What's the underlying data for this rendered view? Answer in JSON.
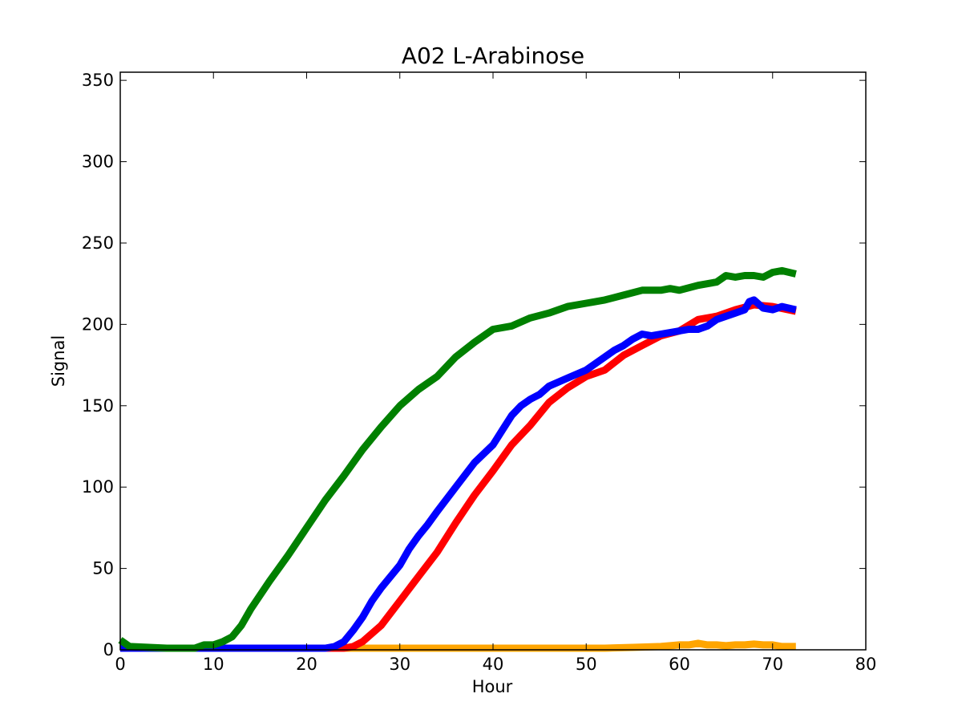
{
  "chart_data": {
    "type": "line",
    "title": "A02 L-Arabinose",
    "xlabel": "Hour",
    "ylabel": "Signal",
    "xlim": [
      0,
      80
    ],
    "ylim": [
      0,
      355
    ],
    "xticks": [
      0,
      10,
      20,
      30,
      40,
      50,
      60,
      70,
      80
    ],
    "yticks": [
      0,
      50,
      100,
      150,
      200,
      250,
      300,
      350
    ],
    "grid": false,
    "legend": "none",
    "series": [
      {
        "color": "#ffa500",
        "x": [
          0,
          5,
          10,
          15,
          20,
          25,
          30,
          35,
          40,
          45,
          50,
          52,
          55,
          58,
          60,
          61,
          62,
          63,
          64,
          65,
          66,
          67,
          68,
          69,
          70,
          71,
          72,
          72.5
        ],
        "y": [
          1,
          1,
          1,
          1,
          1,
          1,
          1,
          1,
          1,
          1,
          1,
          1,
          1.5,
          2,
          3,
          3,
          4,
          3,
          3,
          2.5,
          3,
          3,
          3.5,
          3,
          3,
          2,
          2,
          2
        ]
      },
      {
        "color": "#ff0000",
        "x": [
          0,
          5,
          10,
          15,
          20,
          24,
          25,
          26,
          28,
          30,
          32,
          34,
          36,
          38,
          40,
          42,
          44,
          46,
          48,
          50,
          52,
          54,
          56,
          58,
          60,
          62,
          64,
          66,
          68,
          70,
          72.5
        ],
        "y": [
          1,
          1,
          1,
          1,
          1,
          1,
          2,
          5,
          15,
          30,
          45,
          60,
          78,
          95,
          110,
          126,
          138,
          152,
          161,
          168,
          172,
          181,
          187,
          193,
          196,
          203,
          205,
          209,
          212,
          211,
          208
        ]
      },
      {
        "color": "#0000ff",
        "x": [
          0,
          5,
          10,
          15,
          20,
          22,
          23,
          24,
          25,
          26,
          27,
          28,
          30,
          31,
          32,
          33,
          34,
          36,
          38,
          40,
          41,
          42,
          43,
          44,
          45,
          46,
          48,
          50,
          52,
          53,
          54,
          55,
          56,
          57,
          58,
          59,
          60,
          61,
          62,
          63,
          64,
          65,
          66,
          67,
          67.5,
          68,
          69,
          70,
          71,
          72.5
        ],
        "y": [
          1,
          1,
          1,
          1,
          1,
          1,
          2,
          5,
          12,
          20,
          30,
          38,
          52,
          62,
          70,
          77,
          85,
          100,
          115,
          126,
          135,
          144,
          150,
          154,
          157,
          162,
          167,
          172,
          180,
          184,
          187,
          191,
          194,
          193,
          194,
          195,
          196,
          197,
          197,
          199,
          203,
          205,
          207,
          209,
          214,
          215,
          210,
          209,
          211,
          209
        ]
      },
      {
        "color": "#008000",
        "x": [
          0,
          1,
          5,
          8,
          9,
          10,
          11,
          12,
          13,
          14,
          16,
          18,
          20,
          22,
          24,
          26,
          28,
          30,
          32,
          34,
          36,
          38,
          40,
          42,
          44,
          46,
          48,
          50,
          52,
          54,
          56,
          58,
          59,
          60,
          62,
          64,
          65,
          66,
          67,
          68,
          69,
          70,
          71,
          72.5
        ],
        "y": [
          6,
          2,
          1,
          1,
          3,
          3,
          5,
          8,
          15,
          25,
          42,
          58,
          75,
          92,
          107,
          123,
          137,
          150,
          160,
          168,
          180,
          189,
          197,
          199,
          204,
          207,
          211,
          213,
          215,
          218,
          221,
          221,
          222,
          221,
          224,
          226,
          230,
          229,
          230,
          230,
          229,
          232,
          233,
          231
        ]
      }
    ]
  }
}
